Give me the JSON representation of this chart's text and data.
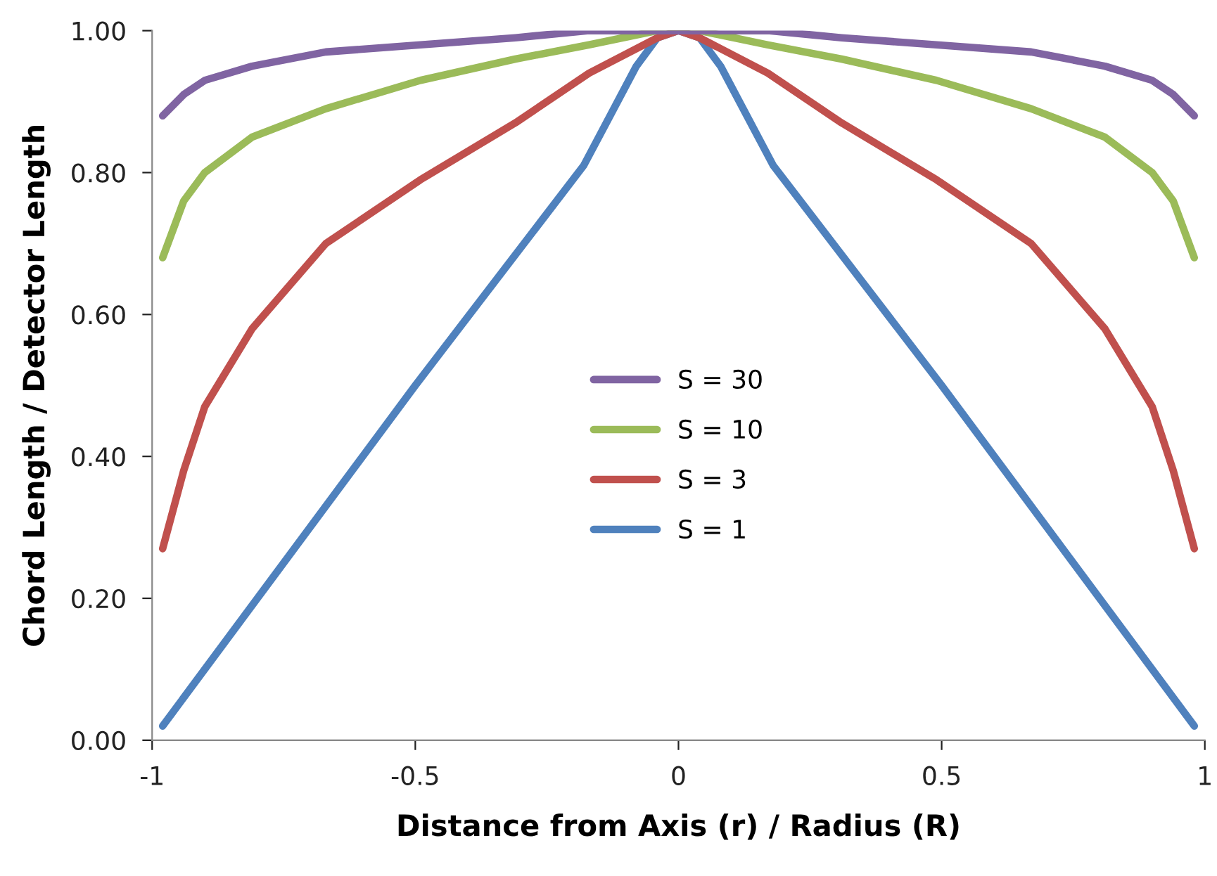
{
  "chart_data": {
    "type": "line",
    "xlabel": "Distance from Axis (r) / Radius (R)",
    "ylabel": "Chord Length / Detector Length",
    "xlim": [
      -1,
      1
    ],
    "xticks": [
      -1,
      -0.5,
      0,
      0.5,
      1
    ],
    "ylim": [
      0,
      1
    ],
    "yticks": [
      {
        "value": 0,
        "label": "0.00"
      },
      {
        "value": 0.2,
        "label": "0.20"
      },
      {
        "value": 0.4,
        "label": "0.40"
      },
      {
        "value": 0.6,
        "label": "0.60"
      },
      {
        "value": 0.8,
        "label": "0.80"
      },
      {
        "value": 1,
        "label": "1.00"
      }
    ],
    "grid": false,
    "legend": "center",
    "marker": "none",
    "line_style": "solid",
    "series": [
      {
        "name": "S = 30",
        "color": "#8064a2",
        "x": [
          -0.98,
          -0.94,
          -0.9,
          -0.81,
          -0.67,
          -0.49,
          -0.31,
          -0.17,
          -0.04,
          0,
          0.04,
          0.17,
          0.31,
          0.49,
          0.67,
          0.81,
          0.9,
          0.94,
          0.98
        ],
        "values": [
          0.88,
          0.91,
          0.93,
          0.95,
          0.97,
          0.98,
          0.99,
          1.0,
          1.0,
          1.0,
          1.0,
          1.0,
          0.99,
          0.98,
          0.97,
          0.95,
          0.93,
          0.91,
          0.88
        ]
      },
      {
        "name": "S = 10",
        "color": "#9bbb59",
        "x": [
          -0.98,
          -0.94,
          -0.9,
          -0.81,
          -0.67,
          -0.49,
          -0.31,
          -0.17,
          -0.04,
          0,
          0.04,
          0.17,
          0.31,
          0.49,
          0.67,
          0.81,
          0.9,
          0.94,
          0.98
        ],
        "values": [
          0.68,
          0.76,
          0.8,
          0.85,
          0.89,
          0.93,
          0.96,
          0.98,
          1.0,
          1.0,
          1.0,
          0.98,
          0.96,
          0.93,
          0.89,
          0.85,
          0.8,
          0.76,
          0.68
        ]
      },
      {
        "name": "S = 3",
        "color": "#c0504d",
        "x": [
          -0.98,
          -0.94,
          -0.9,
          -0.81,
          -0.67,
          -0.49,
          -0.31,
          -0.17,
          -0.04,
          0,
          0.04,
          0.17,
          0.31,
          0.49,
          0.67,
          0.81,
          0.9,
          0.94,
          0.98
        ],
        "values": [
          0.27,
          0.38,
          0.47,
          0.58,
          0.7,
          0.79,
          0.87,
          0.94,
          0.99,
          1.0,
          0.99,
          0.94,
          0.87,
          0.79,
          0.7,
          0.58,
          0.47,
          0.38,
          0.27
        ]
      },
      {
        "name": "S = 1",
        "color": "#4f81bd",
        "x": [
          -0.98,
          -0.5,
          -0.18,
          -0.13,
          -0.08,
          -0.04,
          0,
          0.04,
          0.08,
          0.13,
          0.18,
          0.5,
          0.98
        ],
        "values": [
          0.02,
          0.5,
          0.81,
          0.88,
          0.95,
          0.99,
          1.0,
          0.99,
          0.95,
          0.88,
          0.81,
          0.5,
          0.02
        ]
      }
    ]
  }
}
